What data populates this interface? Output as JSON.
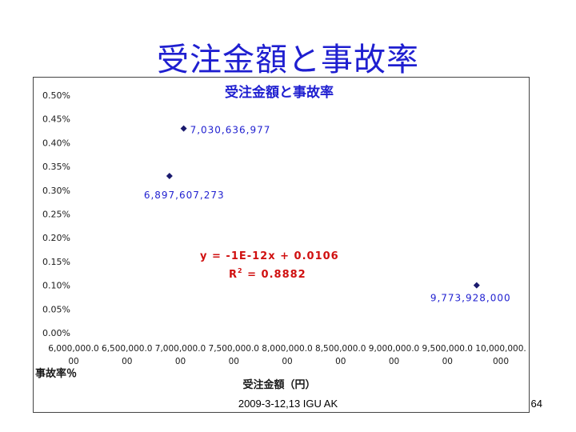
{
  "slide": {
    "title": "受注金額と事故率",
    "footer": "2009-3-12,13 IGU AK",
    "page_number": "64"
  },
  "chart_data": {
    "type": "scatter",
    "title": "受注金額と事故率",
    "xlabel": "受注金額（円）",
    "ylabel": "事故率％",
    "xlim": [
      6000000,
      10000000
    ],
    "ylim": [
      0,
      0.005
    ],
    "x_tick_labels": [
      [
        "6,000,000.0",
        "00"
      ],
      [
        "6,500,000.0",
        "00"
      ],
      [
        "7,000,000.0",
        "00"
      ],
      [
        "7,500,000.0",
        "00"
      ],
      [
        "8,000,000.0",
        "00"
      ],
      [
        "8,500,000.0",
        "00"
      ],
      [
        "9,000,000.0",
        "00"
      ],
      [
        "9,500,000.0",
        "00"
      ],
      [
        "10,000,000.",
        "000"
      ]
    ],
    "y_tick_labels": [
      "0.00%",
      "0.05%",
      "0.10%",
      "0.15%",
      "0.20%",
      "0.25%",
      "0.30%",
      "0.35%",
      "0.40%",
      "0.45%",
      "0.50%"
    ],
    "grid": false,
    "points": [
      {
        "x": 6897607.273,
        "y": 0.0033,
        "label": "6,897,607,273"
      },
      {
        "x": 7030636.977,
        "y": 0.0043,
        "label": "7,030,636,977"
      },
      {
        "x": 9773928.0,
        "y": 0.001,
        "label": "9,773,928,000"
      }
    ],
    "trendline": {
      "equation": "y = -1E-12x + 0.0106",
      "r2_prefix": "R",
      "r2_sup": "2",
      "r2_suffix": " = 0.8882",
      "slope": -1e-12,
      "intercept": 0.0106,
      "x_range": [
        6897607.273,
        9773928.0
      ]
    },
    "colors": {
      "marker": "#1a1a6e",
      "point_label": "#1f1fd0",
      "trendline": "#d01010",
      "title": "#1f1fd0",
      "axis_text": "#1a1a1a"
    }
  }
}
